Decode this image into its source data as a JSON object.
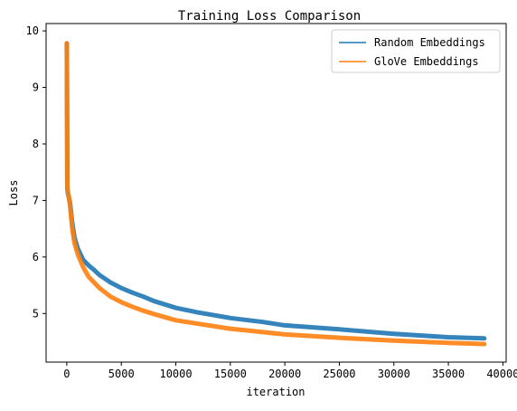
{
  "chart_data": {
    "type": "line",
    "title": "Training Loss Comparison",
    "xlabel": "iteration",
    "ylabel": "Loss",
    "xlim": [
      -1900,
      40300
    ],
    "ylim": [
      4.14,
      10.13
    ],
    "xticks": [
      0,
      5000,
      10000,
      15000,
      20000,
      25000,
      30000,
      35000,
      40000
    ],
    "yticks": [
      5,
      6,
      7,
      8,
      9,
      10
    ],
    "grid": false,
    "legend_position": "top-right",
    "series": [
      {
        "name": "Random Embeddings",
        "color": "#1f77b4",
        "x": [
          0,
          50,
          100,
          200,
          300,
          500,
          700,
          1000,
          1500,
          2000,
          2500,
          3000,
          4000,
          5000,
          6000,
          7000,
          8000,
          10000,
          12000,
          15000,
          18000,
          20000,
          25000,
          30000,
          35000,
          38300
        ],
        "y": [
          9.78,
          7.2,
          7.12,
          7.05,
          6.95,
          6.6,
          6.35,
          6.15,
          5.95,
          5.85,
          5.77,
          5.68,
          5.55,
          5.45,
          5.37,
          5.3,
          5.22,
          5.1,
          5.02,
          4.92,
          4.85,
          4.79,
          4.72,
          4.64,
          4.58,
          4.56
        ]
      },
      {
        "name": "GloVe Embeddings",
        "color": "#ff7f0e",
        "x": [
          0,
          50,
          100,
          200,
          300,
          500,
          700,
          1000,
          1500,
          2000,
          2500,
          3000,
          4000,
          5000,
          6000,
          7000,
          8000,
          10000,
          12000,
          15000,
          18000,
          20000,
          25000,
          30000,
          35000,
          38300
        ],
        "y": [
          9.78,
          7.25,
          7.15,
          7.05,
          6.9,
          6.5,
          6.25,
          6.05,
          5.82,
          5.65,
          5.55,
          5.45,
          5.3,
          5.2,
          5.12,
          5.05,
          4.99,
          4.88,
          4.82,
          4.73,
          4.67,
          4.63,
          4.57,
          4.52,
          4.48,
          4.46
        ]
      }
    ]
  }
}
